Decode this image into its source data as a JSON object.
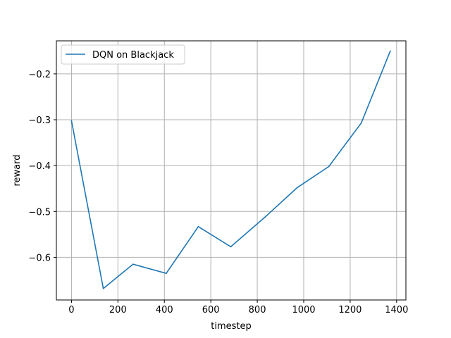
{
  "chart_data": {
    "type": "line",
    "title": "",
    "xlabel": "timestep",
    "ylabel": "reward",
    "xlim": [
      -65,
      1440
    ],
    "ylim": [
      -0.693,
      -0.128
    ],
    "xticks": [
      0,
      200,
      400,
      600,
      800,
      1000,
      1200,
      1400
    ],
    "xtick_labels": [
      "0",
      "200",
      "400",
      "600",
      "800",
      "1000",
      "1200",
      "1400"
    ],
    "yticks": [
      -0.6,
      -0.5,
      -0.4,
      -0.3,
      -0.2
    ],
    "ytick_labels": [
      "−0.6",
      "−0.5",
      "−0.4",
      "−0.3",
      "−0.2"
    ],
    "grid": true,
    "legend": "top-left",
    "series": [
      {
        "name": "DQN on Blackjack",
        "color": "#1f77b4",
        "x": [
          0,
          137,
          265,
          408,
          546,
          686,
          834,
          972,
          1108,
          1248,
          1373
        ],
        "y": [
          -0.302,
          -0.668,
          -0.615,
          -0.635,
          -0.533,
          -0.577,
          -0.512,
          -0.448,
          -0.402,
          -0.307,
          -0.15
        ]
      }
    ]
  }
}
